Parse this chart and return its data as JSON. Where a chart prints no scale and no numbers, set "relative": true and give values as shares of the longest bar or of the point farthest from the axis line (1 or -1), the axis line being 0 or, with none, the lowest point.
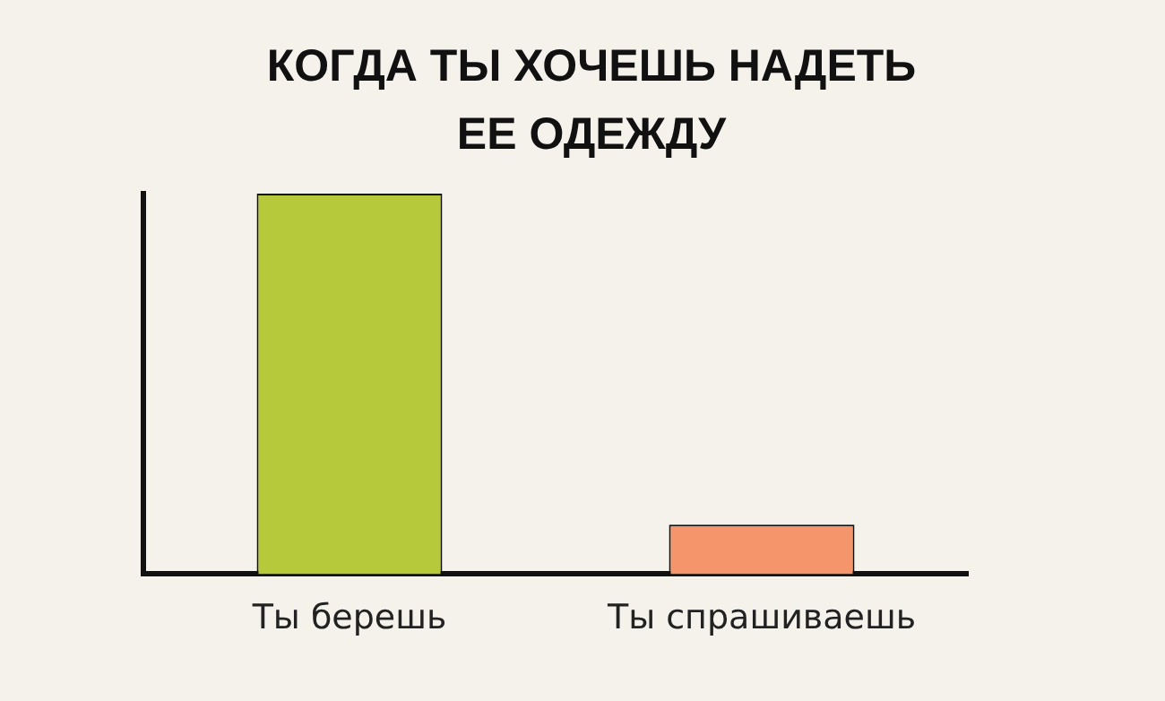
{
  "chart_data": {
    "type": "bar",
    "title": "КОГДА ТЫ ХОЧЕШЬ НАДЕТЬ ЕЕ ОДЕЖДУ",
    "categories": [
      "Ты берешь",
      "Ты спрашиваешь"
    ],
    "values": [
      1,
      0.13
    ],
    "colors": [
      "#b5c93a",
      "#f5956b"
    ],
    "relative": true,
    "grid": false,
    "legend": false
  }
}
